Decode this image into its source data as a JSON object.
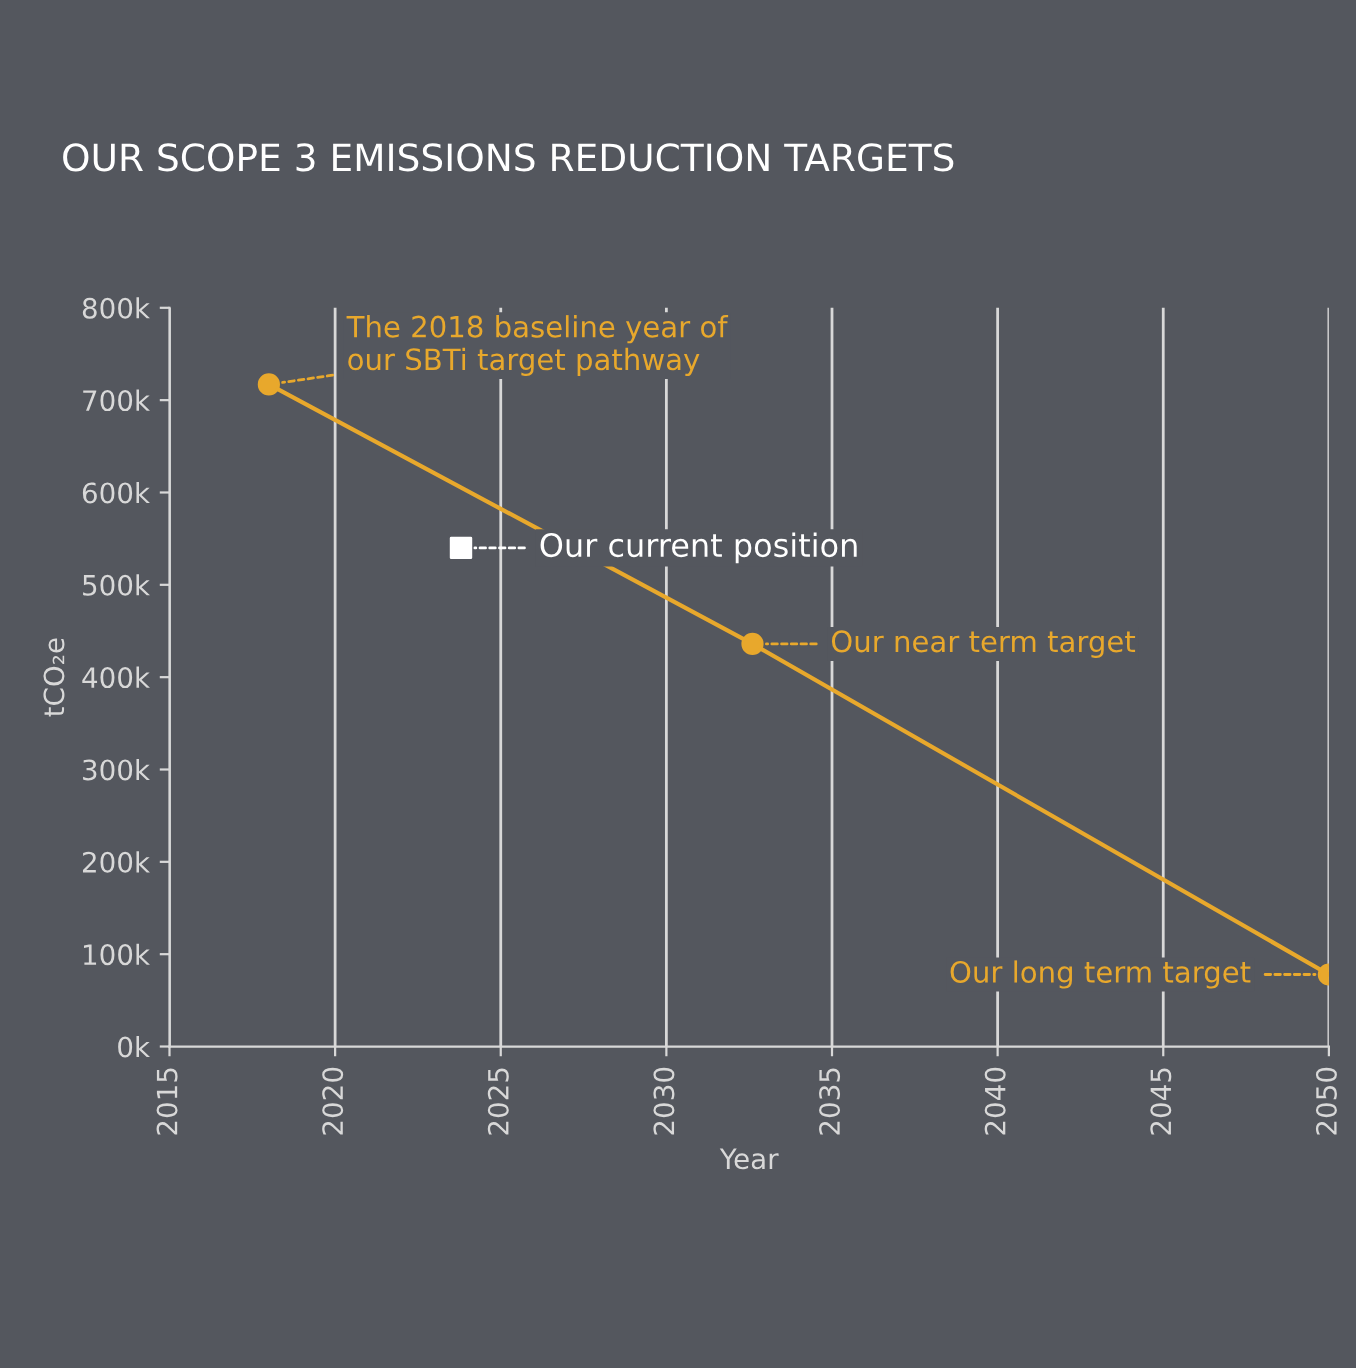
{
  "chart_data": {
    "type": "line",
    "title": "OUR SCOPE 3 EMISSIONS REDUCTION TARGETS",
    "xlabel": "Year",
    "ylabel": "tCO₂e",
    "xlim": [
      2015,
      2050
    ],
    "xticks": [
      2015,
      2020,
      2025,
      2030,
      2035,
      2040,
      2045,
      2050
    ],
    "ylim": [
      0,
      800000
    ],
    "yticks": [
      {
        "value": 0,
        "label": "0k"
      },
      {
        "value": 100000,
        "label": "100k"
      },
      {
        "value": 200000,
        "label": "200k"
      },
      {
        "value": 300000,
        "label": "300k"
      },
      {
        "value": 400000,
        "label": "400k"
      },
      {
        "value": 500000,
        "label": "500k"
      },
      {
        "value": 600000,
        "label": "600k"
      },
      {
        "value": 700000,
        "label": "700k"
      },
      {
        "value": 800000,
        "label": "800k"
      }
    ],
    "grid": "x",
    "marker": "circle",
    "series": [
      {
        "color": "#e8a82c",
        "x": [
          2018,
          2032.6,
          2050
        ],
        "values": [
          717000,
          436000,
          78000
        ]
      },
      {
        "type": "scatter",
        "color": "#ffffff",
        "marker": "square",
        "x": [
          2023.8
        ],
        "values": [
          540000
        ]
      }
    ],
    "annotations": [
      {
        "text": "The 2018 baseline year of\nour SBTi target pathway",
        "x": 2018,
        "y": 717000
      },
      {
        "text": "Our current position",
        "x": 2023.8,
        "y": 540000
      },
      {
        "text": "Our near term target",
        "x": 2032.6,
        "y": 436000
      },
      {
        "text": "Our long term target",
        "x": 2050,
        "y": 78000
      }
    ]
  }
}
